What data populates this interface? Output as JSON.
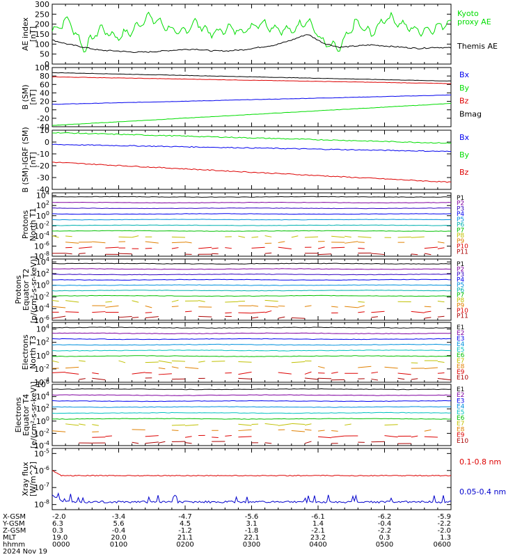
{
  "chart_data": {
    "type": "line",
    "x_labels": [
      "0000",
      "0100",
      "0200",
      "0300",
      "0400",
      "0500",
      "0600"
    ],
    "panels": [
      {
        "id": "ae",
        "ylabel": "AE index\n[nT]",
        "yticks": [
          "300",
          "250",
          "200",
          "150",
          "100",
          "50",
          "0"
        ],
        "yscale": "linear",
        "ylim": [
          0,
          300
        ],
        "series": [
          {
            "name": "Kyoto\nproxy AE",
            "color": "#00dd00",
            "shape": "spiky",
            "values_rel": [
              0.55,
              0.75,
              0.25,
              0.6,
              0.45,
              0.55,
              0.8,
              0.65,
              0.5,
              0.7,
              0.5,
              0.6,
              0.55,
              0.7,
              0.6,
              0.55,
              0.75,
              0.35,
              0.25,
              0.7,
              0.5,
              0.8,
              0.65,
              0.55,
              0.6,
              0.72
            ]
          },
          {
            "name": "Themis AE",
            "color": "#000000",
            "shape": "smooth",
            "values_rel": [
              0.4,
              0.33,
              0.28,
              0.23,
              0.22,
              0.2,
              0.2,
              0.22,
              0.24,
              0.25,
              0.22,
              0.22,
              0.24,
              0.28,
              0.32,
              0.4,
              0.5,
              0.35,
              0.28,
              0.3,
              0.32,
              0.3,
              0.28,
              0.26,
              0.28,
              0.27
            ]
          }
        ],
        "legend_pos": "right"
      },
      {
        "id": "bsm",
        "ylabel": "B (SM)\n[nT]",
        "yticks": [
          "100",
          "80",
          "60",
          "40",
          "20",
          "0",
          "-20",
          "-40"
        ],
        "yscale": "linear",
        "ylim": [
          -40,
          100
        ],
        "series": [
          {
            "name": "Bx",
            "color": "#0000ee",
            "start": 13,
            "end": 35
          },
          {
            "name": "By",
            "color": "#00dd00",
            "start": -37,
            "end": 15
          },
          {
            "name": "Bz",
            "color": "#dd0000",
            "start": 78,
            "end": 62
          },
          {
            "name": "Bmag",
            "color": "#000000",
            "start": 88,
            "end": 68
          }
        ],
        "legend_pos": "right"
      },
      {
        "id": "bdiff",
        "ylabel": "B (SM)-IGRF (SM)\n[nT]",
        "yticks": [
          "10",
          "0",
          "-10",
          "-20",
          "-30",
          "-40"
        ],
        "yscale": "linear",
        "ylim": [
          -40,
          10
        ],
        "series": [
          {
            "name": "Bx",
            "color": "#0000ee",
            "start": -2,
            "end": -8
          },
          {
            "name": "By",
            "color": "#00dd00",
            "start": 8,
            "end": -1
          },
          {
            "name": "Bz",
            "color": "#dd0000",
            "start": -17,
            "end": -34
          }
        ],
        "legend_pos": "right"
      },
      {
        "id": "p1",
        "ylabel": "Protons\nNorth T1",
        "ytick_exps": [
          "4",
          "2",
          "0",
          "-2",
          "-4",
          "-6",
          "-8"
        ],
        "yscale": "log",
        "ylim_exp": [
          -8,
          4.5
        ],
        "legend": [
          "P1",
          "P2",
          "P3",
          "P4",
          "P5",
          "P6",
          "P7",
          "P8",
          "P9",
          "P10",
          "P11"
        ],
        "legend_colors": [
          "#000000",
          "#8000a0",
          "#3000c0",
          "#0000ee",
          "#0090dd",
          "#00b0b0",
          "#00c000",
          "#c0c000",
          "#e08000",
          "#dd0000",
          "#aa0000"
        ]
      },
      {
        "id": "p2",
        "ylabel": "Protons\nEquator T2\n[p/(cm²-s-sr-keV)]",
        "ytick_exps": [
          "4",
          "2",
          "0",
          "-2",
          "-4",
          "-6"
        ],
        "yscale": "log",
        "ylim_exp": [
          -6,
          4.5
        ],
        "legend": [
          "P1",
          "P2",
          "P3",
          "P4",
          "P5",
          "P6",
          "P7",
          "P8",
          "P9",
          "P10",
          "P11"
        ],
        "legend_colors": [
          "#000000",
          "#8000a0",
          "#3000c0",
          "#0000ee",
          "#0090dd",
          "#00b0b0",
          "#00c000",
          "#c0c000",
          "#e08000",
          "#dd0000",
          "#aa0000"
        ]
      },
      {
        "id": "e3",
        "ylabel": "Electrons\nNorth T3",
        "ytick_exps": [
          "4",
          "2",
          "0",
          "-2",
          "-4"
        ],
        "yscale": "log",
        "ylim_exp": [
          -4,
          5
        ],
        "legend": [
          "E1",
          "E2",
          "E3",
          "E4",
          "E5",
          "E6",
          "E7",
          "E8",
          "E9",
          "E10"
        ],
        "legend_colors": [
          "#000000",
          "#8000a0",
          "#0000ee",
          "#0090dd",
          "#00c0c0",
          "#00c000",
          "#c0c000",
          "#e08000",
          "#dd0000",
          "#aa0000"
        ]
      },
      {
        "id": "e4",
        "ylabel": "Electrons\nEquator T4\n[e/(cm²-s-sr-keV)]",
        "ytick_exps": [
          "6",
          "4",
          "2",
          "0",
          "-2",
          "-4"
        ],
        "yscale": "log",
        "ylim_exp": [
          -4,
          6
        ],
        "legend": [
          "E1",
          "E2",
          "E3",
          "E4",
          "E5",
          "E6",
          "E7",
          "E8",
          "E9",
          "E10"
        ],
        "legend_colors": [
          "#000000",
          "#8000a0",
          "#0000ee",
          "#0090dd",
          "#00c0c0",
          "#00c000",
          "#c0c000",
          "#e08000",
          "#dd0000",
          "#aa0000"
        ]
      },
      {
        "id": "xray",
        "ylabel": "Xray flux\n[W/m^2]",
        "ytick_exps": [
          "-5",
          "-6",
          "-7",
          "-8"
        ],
        "yscale": "log",
        "ylim_exp": [
          -8.3,
          -4.7
        ],
        "series": [
          {
            "name": "0.1-0.8 nm",
            "color": "#dd0000",
            "level_exp": -6.3
          },
          {
            "name": "0.05-0.4 nm",
            "color": "#0000cc",
            "level_exp": -7.85
          }
        ],
        "legend_pos": "right"
      }
    ],
    "footer": {
      "rows": [
        {
          "label": "X-GSM",
          "values": [
            "-2.0",
            "-3.4",
            "-4.7",
            "-5.6",
            "-6.1",
            "-6.2",
            "-5.9"
          ]
        },
        {
          "label": "Y-GSM",
          "values": [
            "6.3",
            "5.6",
            "4.5",
            "3.1",
            "1.4",
            "-0.4",
            "-2.2"
          ]
        },
        {
          "label": "Z-GSM",
          "values": [
            "0.3",
            "-0.4",
            "-1.2",
            "-1.8",
            "-2.1",
            "-2.2",
            "-2.0"
          ]
        },
        {
          "label": "MLT",
          "values": [
            "19.0",
            "20.0",
            "21.1",
            "22.1",
            "23.2",
            "0.3",
            "1.3"
          ]
        },
        {
          "label": "hhmm",
          "values": [
            "0000",
            "0100",
            "0200",
            "0300",
            "0400",
            "0500",
            "0600"
          ]
        }
      ],
      "date": "2024 Nov 19"
    }
  }
}
